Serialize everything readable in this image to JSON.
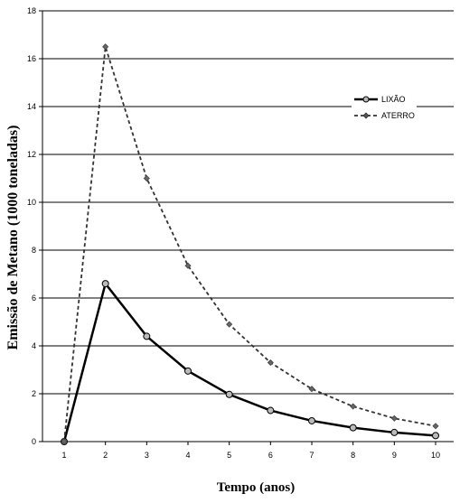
{
  "chart_data": {
    "type": "line",
    "xlabel": "Tempo (anos)",
    "ylabel": "Emissão de Metano  (1000 toneladas)",
    "x": [
      1,
      2,
      3,
      4,
      5,
      6,
      7,
      8,
      9,
      10
    ],
    "x_tick_labels": [
      "1",
      "2",
      "3",
      "4",
      "5",
      "6",
      "7",
      "8",
      "9",
      "10"
    ],
    "ylim": [
      0,
      18
    ],
    "y_ticks": [
      0,
      2,
      4,
      6,
      8,
      10,
      12,
      14,
      16,
      18
    ],
    "grid": true,
    "legend_position": "top-right",
    "series": [
      {
        "name": "LIXÃO",
        "style": "solid",
        "marker": "circle",
        "color": "#000000",
        "values": [
          0,
          6.6,
          4.4,
          2.95,
          1.97,
          1.3,
          0.87,
          0.58,
          0.38,
          0.25
        ]
      },
      {
        "name": "ATERRO",
        "style": "dashed",
        "marker": "diamond",
        "color": "#333333",
        "values": [
          0,
          16.5,
          11.0,
          7.35,
          4.9,
          3.3,
          2.2,
          1.47,
          0.97,
          0.65
        ]
      }
    ]
  }
}
